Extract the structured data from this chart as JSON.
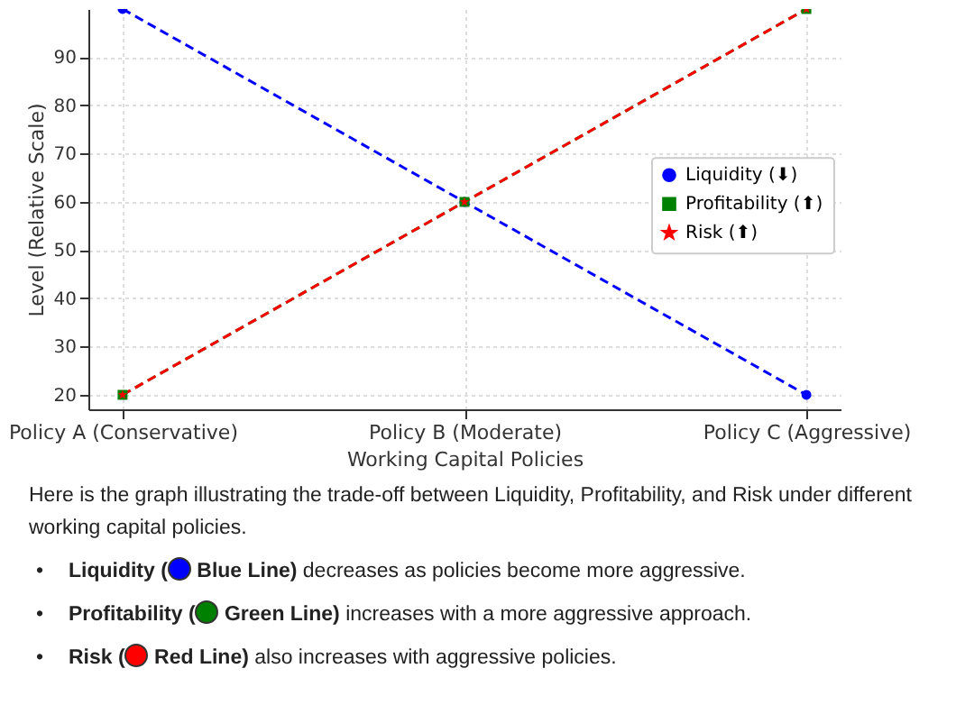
{
  "chart_data": {
    "type": "line",
    "xlabel": "Working Capital Policies",
    "ylabel": "Level (Relative Scale)",
    "categories": [
      "Policy A (Conservative)",
      "Policy B (Moderate)",
      "Policy C (Aggressive)"
    ],
    "series": [
      {
        "name": "Liquidity (⬇)",
        "color": "#0000ff",
        "marker": "circle",
        "values": [
          100,
          60,
          20
        ]
      },
      {
        "name": "Profitability (⬆)",
        "color": "#008000",
        "marker": "square",
        "values": [
          20,
          60,
          100
        ]
      },
      {
        "name": "Risk (⬆)",
        "color": "#ff0000",
        "marker": "star",
        "values": [
          20,
          60,
          100
        ]
      }
    ],
    "ylim": [
      17,
      100
    ],
    "yticks": [
      20,
      30,
      40,
      50,
      60,
      70,
      80,
      90
    ],
    "grid": true,
    "legend": "right",
    "line_style": "dashed",
    "annotations": [
      "Here is the graph illustrating the trade-off between Liquidity, Profitability, and Risk under different working capital policies.",
      "• Liquidity (🔵 Blue Line) decreases as policies become more aggressive.",
      "• Profitability (🟢 Green Line) increases with a more aggressive approach.",
      "• Risk (🔴 Red Line) also increases with aggressive policies."
    ]
  }
}
